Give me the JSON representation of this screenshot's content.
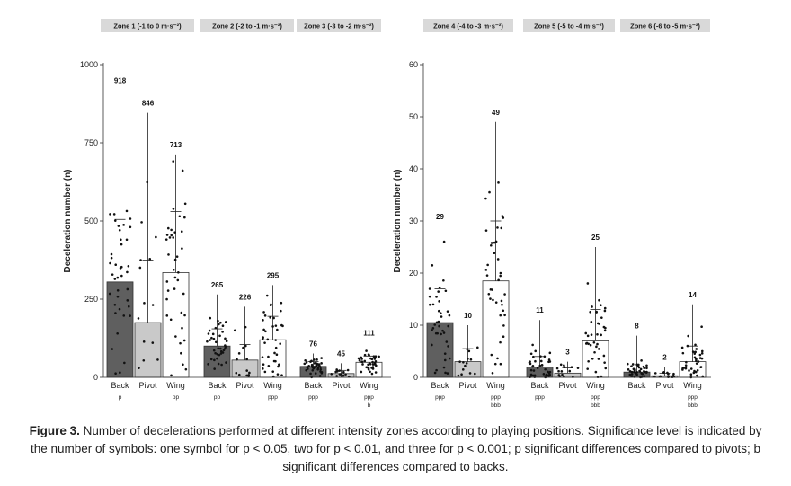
{
  "chart_data": [
    {
      "type": "bar",
      "panel": "left",
      "ylabel": "Deceleration number (n)",
      "ylim": [
        0,
        1000
      ],
      "yticks": [
        0,
        250,
        500,
        750,
        1000
      ],
      "tick_labels": [
        "0",
        "250",
        "500",
        "750",
        "1000"
      ],
      "zones": [
        {
          "label": "Zone 1 (-1 to 0 m·s⁻²)",
          "categories": [
            "Back",
            "Pivot",
            "Wing"
          ],
          "means": [
            305,
            175,
            335
          ],
          "sd": [
            200,
            200,
            195
          ],
          "max": [
            918,
            846,
            713
          ],
          "max_labels": [
            "918",
            "846",
            "713"
          ],
          "sig": [
            "p",
            "",
            "pp"
          ]
        },
        {
          "label": "Zone 2 (-2 to -1 m·s⁻²)",
          "categories": [
            "Back",
            "Pivot",
            "Wing"
          ],
          "means": [
            100,
            55,
            120
          ],
          "sd": [
            55,
            50,
            75
          ],
          "max": [
            265,
            226,
            295
          ],
          "max_labels": [
            "265",
            "226",
            "295"
          ],
          "sig": [
            "pp",
            "",
            "ppp"
          ]
        },
        {
          "label": "Zone 3 (-3 to -2 m·s⁻²)",
          "categories": [
            "Back",
            "Pivot",
            "Wing"
          ],
          "means": [
            35,
            12,
            48
          ],
          "sd": [
            15,
            10,
            20
          ],
          "max": [
            76,
            45,
            111
          ],
          "max_labels": [
            "76",
            "45",
            "111"
          ],
          "sig": [
            "ppp",
            "",
            "ppp\nb"
          ]
        }
      ]
    },
    {
      "type": "bar",
      "panel": "right",
      "ylabel": "Deceleration number (n)",
      "ylim": [
        0,
        60
      ],
      "yticks": [
        0,
        10,
        20,
        30,
        40,
        50,
        60
      ],
      "tick_labels": [
        "0",
        "10",
        "20",
        "30",
        "40",
        "50",
        "60"
      ],
      "zones": [
        {
          "label": "Zone 4 (-4 to -3 m·s⁻²)",
          "categories": [
            "Back",
            "Pivot",
            "Wing"
          ],
          "means": [
            10.5,
            3,
            18.5
          ],
          "sd": [
            6.5,
            2.5,
            11.5
          ],
          "max": [
            29,
            10,
            49
          ],
          "max_labels": [
            "29",
            "10",
            "49"
          ],
          "sig": [
            "ppp",
            "",
            "ppp\nbbb"
          ]
        },
        {
          "label": "Zone 5 (-5 to -4 m·s⁻²)",
          "categories": [
            "Back",
            "Pivot",
            "Wing"
          ],
          "means": [
            2,
            0.8,
            7
          ],
          "sd": [
            2,
            1,
            6
          ],
          "max": [
            11,
            3,
            25
          ],
          "max_labels": [
            "11",
            "3",
            "25"
          ],
          "sig": [
            "ppp",
            "",
            "ppp\nbbb"
          ]
        },
        {
          "label": "Zone 6 (-6 to -5 m·s⁻²)",
          "categories": [
            "Back",
            "Pivot",
            "Wing"
          ],
          "means": [
            1,
            0.3,
            3
          ],
          "sd": [
            1,
            0.5,
            3
          ],
          "max": [
            8,
            2,
            14
          ],
          "max_labels": [
            "8",
            "2",
            "14"
          ],
          "sig": [
            "",
            "",
            "ppp\nbbb"
          ]
        }
      ]
    }
  ],
  "colors": {
    "back": "#5f5f5f",
    "pivot": "#c9c9c9",
    "wing": "#ffffff",
    "header": "#d9d9d9"
  },
  "caption": {
    "label": "Figure 3.",
    "text": "Number of decelerations performed at different intensity zones according to playing positions. Significance level is indicated by the number of symbols: one symbol for p < 0.05, two for p < 0.01, and three for p < 0.001; p significant differences compared to pivots; b significant differences compared to backs."
  }
}
